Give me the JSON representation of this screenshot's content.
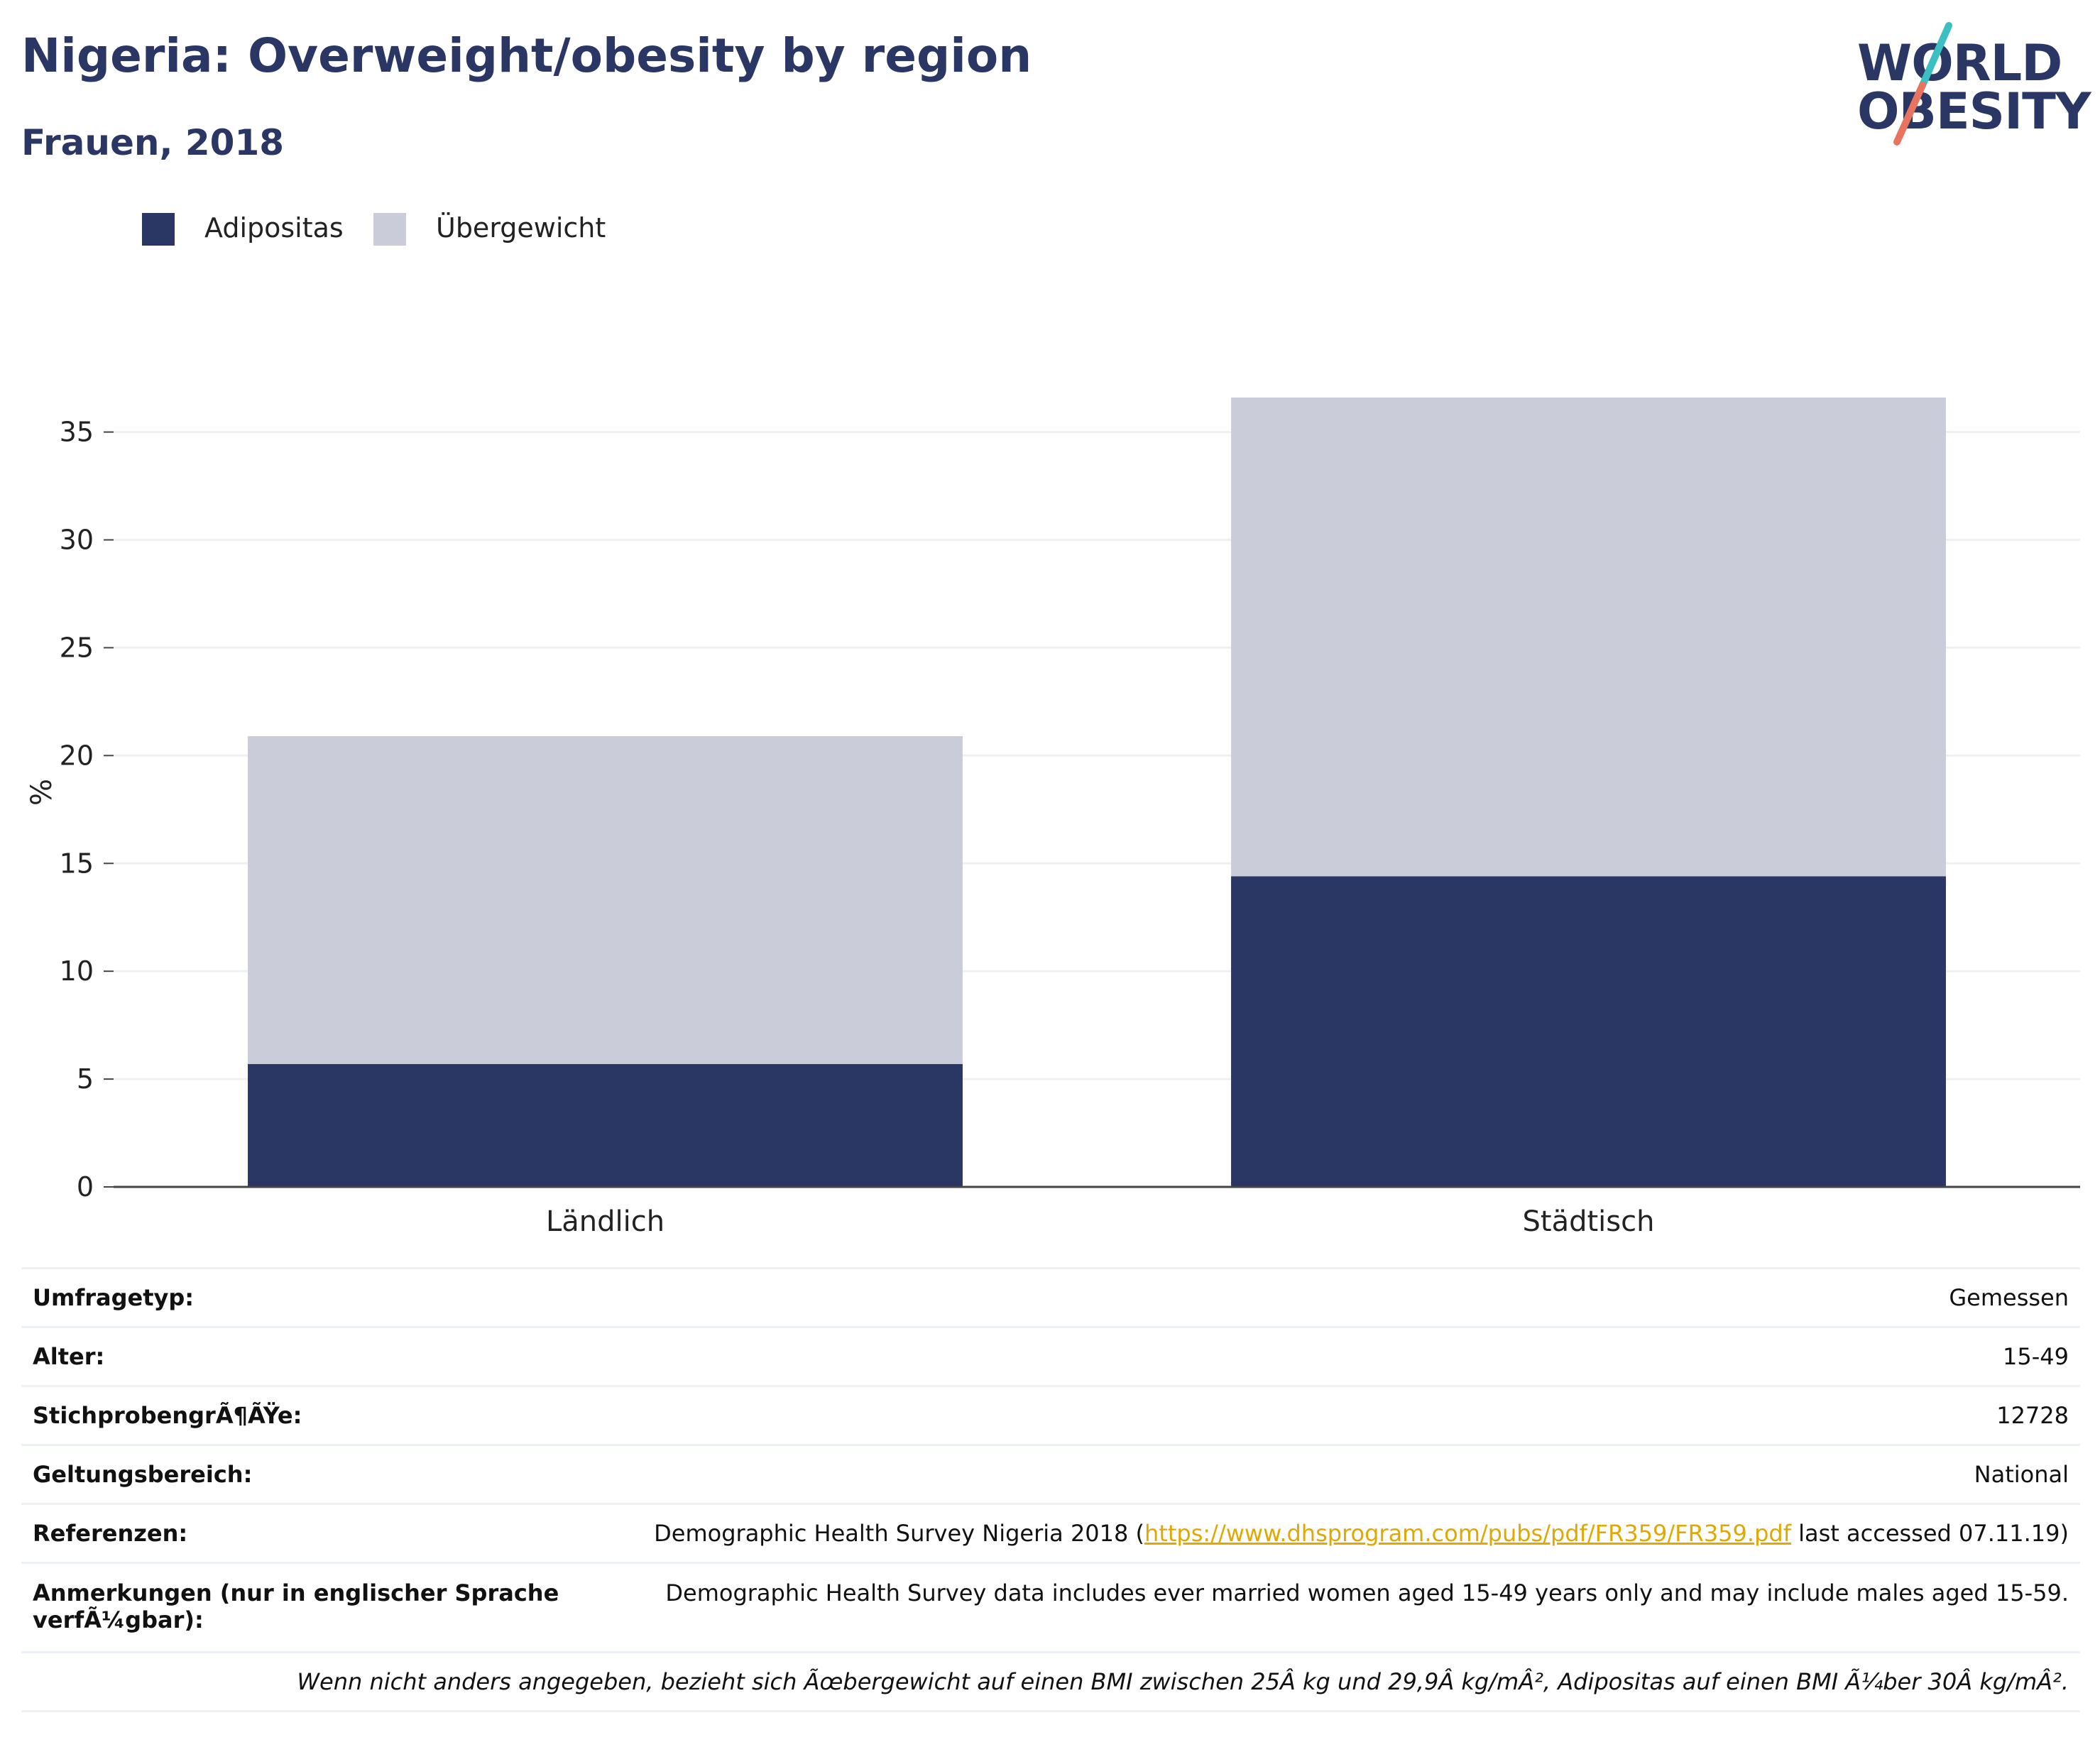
{
  "header": {
    "title": "Nigeria: Overweight/obesity by region",
    "subtitle": "Frauen, 2018"
  },
  "logo": {
    "line1": "WORLD",
    "line2": "OBESITY",
    "accent_colors": [
      "#3bbfc1",
      "#e8735f"
    ]
  },
  "chart_data": {
    "type": "bar",
    "stacked": true,
    "categories": [
      "Ländlich",
      "Städtisch"
    ],
    "series": [
      {
        "name": "Adipositas",
        "color": "#2a3663",
        "values": [
          5.7,
          14.4
        ]
      },
      {
        "name": "Übergewicht",
        "color": "#cacdd9",
        "values": [
          15.2,
          22.2
        ]
      }
    ],
    "ylabel": "%",
    "xlabel": "",
    "ylim": [
      0,
      36.6
    ],
    "yticks": [
      0,
      5,
      10,
      15,
      20,
      25,
      30,
      35
    ],
    "grid": true,
    "legend_position": "top-left"
  },
  "info": {
    "rows": [
      {
        "label": "Umfragetyp:",
        "value": "Gemessen"
      },
      {
        "label": "Alter:",
        "value": "15-49"
      },
      {
        "label": "StichprobengrÃ¶ÃŸe:",
        "value": "12728"
      },
      {
        "label": "Geltungsbereich:",
        "value": "National"
      }
    ],
    "references": {
      "label": "Referenzen:",
      "prefix": "Demographic Health Survey Nigeria 2018 (",
      "link": "https://www.dhsprogram.com/pubs/pdf/FR359/FR359.pdf",
      "suffix": " last accessed 07.11.19)"
    },
    "notes": {
      "label": "Anmerkungen (nur in englischer Sprache verfÃ¼gbar):",
      "value": "Demographic Health Survey data includes ever married women aged 15-49 years only and may include males aged 15-59."
    },
    "footnote": "Wenn nicht anders angegeben, bezieht sich Ãœbergewicht auf einen BMI zwischen 25Â kg und 29,9Â kg/mÂ², Adipositas auf einen BMI Ã¼ber 30Â kg/mÂ²."
  }
}
